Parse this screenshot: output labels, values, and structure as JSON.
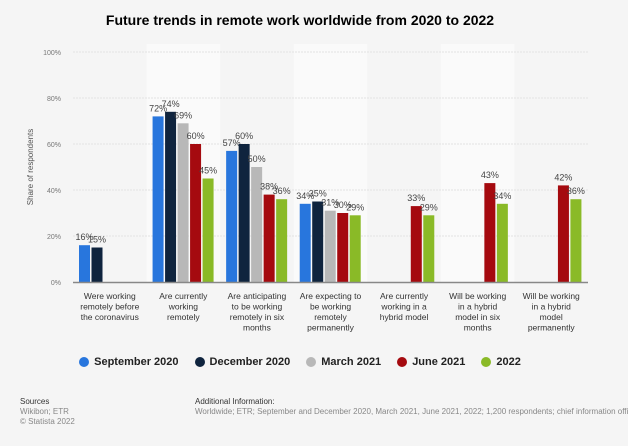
{
  "chart_data": {
    "type": "bar",
    "title": "Future trends in remote work worldwide from 2020 to 2022",
    "ylabel": "Share of respondents",
    "ylim": [
      0,
      100
    ],
    "yticks": [
      "0%",
      "20%",
      "40%",
      "60%",
      "80%",
      "100%"
    ],
    "grid": true,
    "legend_position": "bottom",
    "categories": [
      [
        "Were working",
        "remotely before",
        "the coronavirus"
      ],
      [
        "Are currently",
        "working",
        "remotely"
      ],
      [
        "Are anticipating",
        "to be working",
        "remotely in six",
        "months"
      ],
      [
        "Are expecting to",
        "be working",
        "remotely",
        "permanently"
      ],
      [
        "Are currently",
        "working in a",
        "hybrid model"
      ],
      [
        "Will be working",
        "in a hybrid",
        "model in six",
        "months"
      ],
      [
        "Will be working",
        "in a hybrid",
        "model",
        "permanently"
      ]
    ],
    "series": [
      {
        "name": "September 2020",
        "color": "#2876dd",
        "values": [
          16,
          72,
          57,
          34,
          null,
          null,
          null
        ]
      },
      {
        "name": "December 2020",
        "color": "#0f243e",
        "values": [
          15,
          74,
          60,
          35,
          null,
          null,
          null
        ]
      },
      {
        "name": "March 2021",
        "color": "#b8b8b8",
        "values": [
          null,
          69,
          50,
          31,
          null,
          null,
          null
        ]
      },
      {
        "name": "June 2021",
        "color": "#a50a0f",
        "values": [
          null,
          60,
          38,
          30,
          33,
          43,
          42
        ]
      },
      {
        "name": "2022",
        "color": "#8aba27",
        "values": [
          null,
          45,
          36,
          29,
          29,
          34,
          36
        ]
      }
    ]
  },
  "footer": {
    "sources_title": "Sources",
    "sources": "Wikibon; ETR",
    "copyright": "© Statista 2022",
    "info_title": "Additional Information:",
    "info": "Worldwide; ETR; September and December 2020, March 2021, June 2021, 2022; 1,200 respondents; chief information offi"
  }
}
